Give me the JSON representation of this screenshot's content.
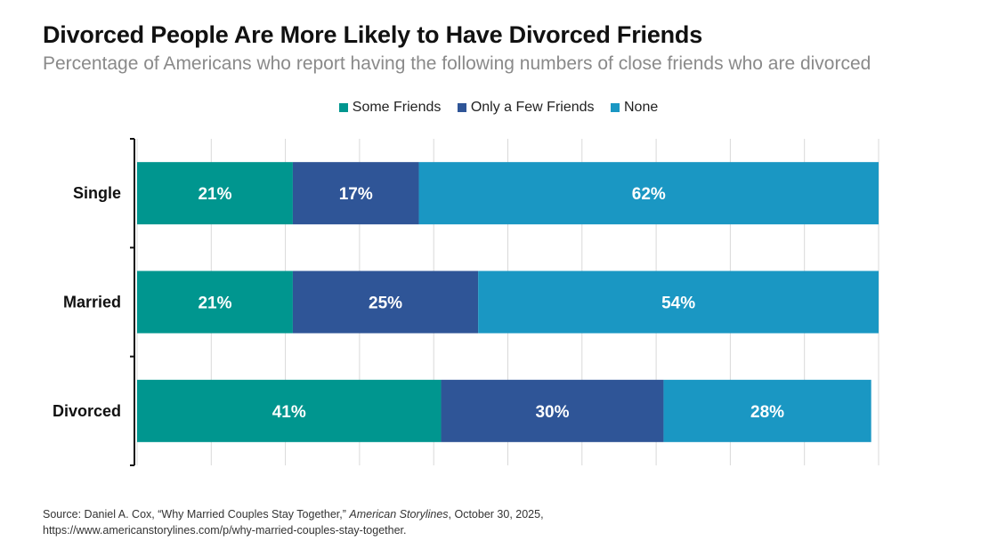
{
  "title": "Divorced People Are More Likely to Have Divorced Friends",
  "subtitle": "Percentage of Americans who report having the following numbers of close friends who are divorced",
  "chart_data": {
    "type": "bar",
    "orientation": "horizontal",
    "stacked": true,
    "categories": [
      "Single",
      "Married",
      "Divorced"
    ],
    "series": [
      {
        "name": "Some Friends",
        "color": "#00968f",
        "values": [
          21,
          21,
          41
        ],
        "labels": [
          "21%",
          "21%",
          "41%"
        ]
      },
      {
        "name": "Only a Few Friends",
        "color": "#2f5597",
        "values": [
          17,
          25,
          30
        ],
        "labels": [
          "17%",
          "25%",
          "30%"
        ]
      },
      {
        "name": "None",
        "color": "#1a97c3",
        "values": [
          62,
          54,
          28
        ],
        "labels": [
          "62%",
          "54%",
          "28%"
        ]
      }
    ],
    "xlim": [
      0,
      100
    ],
    "grid": true,
    "legend_position": "top-center",
    "xlabel": "",
    "ylabel": ""
  },
  "source": {
    "prefix": "Source: Daniel A. Cox, “Why Married Couples Stay Together,” ",
    "publication": "American Storylines",
    "suffix": ", October 30, 2025,",
    "url": "https://www.americanstorylines.com/p/why-married-couples-stay-together."
  }
}
